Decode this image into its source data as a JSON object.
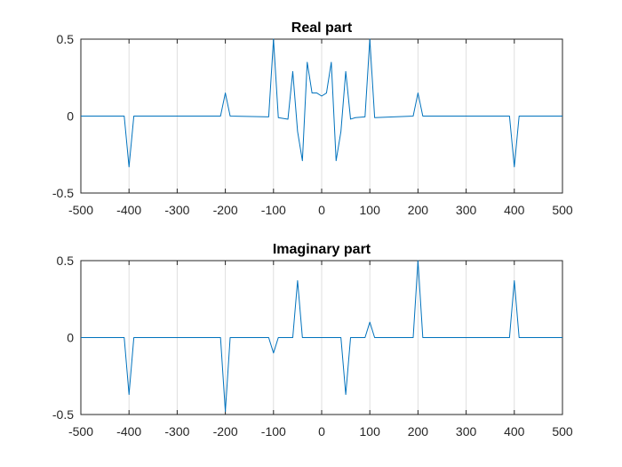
{
  "chart_data": [
    {
      "type": "line",
      "title": "Real part",
      "xlabel": "",
      "ylabel": "",
      "xlim": [
        -500,
        500
      ],
      "ylim": [
        -0.5,
        0.5
      ],
      "xticks": [
        "-500",
        "-400",
        "-300",
        "-200",
        "-100",
        "0",
        "100",
        "200",
        "300",
        "400",
        "500"
      ],
      "yticks": [
        "-0.5",
        "0",
        "0.5"
      ],
      "grid": "vertical",
      "series": [
        {
          "color": "#0072bd",
          "x": [
            -500,
            -410,
            -400,
            -390,
            -210,
            -200,
            -190,
            -110,
            -100,
            -90,
            -70,
            -60,
            -50,
            -40,
            -30,
            -20,
            -10,
            0,
            10,
            20,
            30,
            40,
            50,
            60,
            70,
            90,
            100,
            110,
            190,
            200,
            210,
            390,
            400,
            410,
            500
          ],
          "y": [
            0,
            0,
            -0.33,
            0,
            0,
            0.15,
            0,
            -0.005,
            0.5,
            -0.01,
            -0.02,
            0.29,
            -0.1,
            -0.29,
            0.35,
            0.15,
            0.15,
            0.13,
            0.15,
            0.35,
            -0.29,
            -0.1,
            0.29,
            -0.02,
            -0.01,
            -0.005,
            0.5,
            -0.01,
            0,
            0.15,
            0,
            0,
            -0.33,
            0,
            0
          ]
        }
      ]
    },
    {
      "type": "line",
      "title": "Imaginary part",
      "xlabel": "",
      "ylabel": "",
      "xlim": [
        -500,
        500
      ],
      "ylim": [
        -0.5,
        0.5
      ],
      "xticks": [
        "-500",
        "-400",
        "-300",
        "-200",
        "-100",
        "0",
        "100",
        "200",
        "300",
        "400",
        "500"
      ],
      "yticks": [
        "-0.5",
        "0",
        "0.5"
      ],
      "grid": "vertical",
      "series": [
        {
          "color": "#0072bd",
          "x": [
            -500,
            -410,
            -400,
            -390,
            -210,
            -200,
            -190,
            -110,
            -100,
            -90,
            -60,
            -50,
            -40,
            40,
            50,
            60,
            90,
            100,
            110,
            190,
            200,
            210,
            390,
            400,
            410,
            500
          ],
          "y": [
            0,
            0,
            -0.37,
            0,
            0,
            -0.48,
            0,
            0,
            -0.1,
            0,
            0,
            0.37,
            0,
            0,
            -0.37,
            0,
            0,
            0.1,
            0,
            0,
            0.5,
            0,
            0,
            0.37,
            0,
            0
          ]
        }
      ]
    }
  ]
}
